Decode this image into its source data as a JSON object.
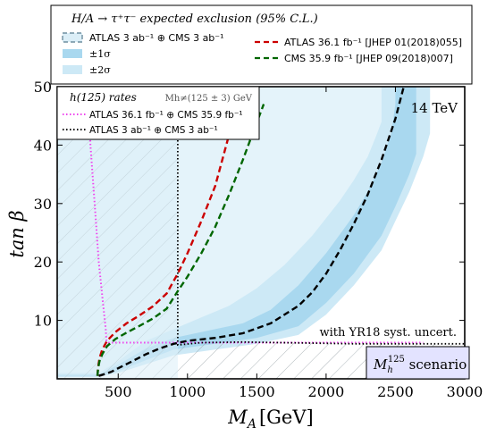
{
  "chart_data": {
    "type": "area",
    "xlabel": "M",
    "xlabel_sub": "A",
    "xlabel_unit": "[GeV]",
    "ylabel": "tan β",
    "xlim": [
      60,
      3000
    ],
    "ylim": [
      0,
      50
    ],
    "xticks": [
      500,
      1000,
      1500,
      2000,
      2500,
      3000
    ],
    "yticks": [
      10,
      20,
      30,
      40,
      50
    ],
    "energy_label": "14 TeV",
    "scenario_label": "M",
    "scenario_sub": "h",
    "scenario_sup": "125",
    "scenario_suffix": " scenario",
    "annotation": "with YR18 syst. uncert.",
    "legend_top": {
      "title": "H/A → τ⁺τ⁻ expected exclusion (95% C.L.)",
      "entries": [
        {
          "label": "ATLAS 3 ab⁻¹ ⊕ CMS 3 ab⁻¹",
          "kind": "dashed-box"
        },
        {
          "label": "±1σ",
          "kind": "band1"
        },
        {
          "label": "±2σ",
          "kind": "band2"
        },
        {
          "label": "ATLAS 36.1 fb⁻¹ [JHEP 01(2018)055]",
          "kind": "red-dash"
        },
        {
          "label": "CMS 35.9 fb⁻¹ [JHEP 09(2018)007]",
          "kind": "green-dash"
        }
      ]
    },
    "legend_h125": {
      "title": "h(125) rates",
      "note": "Mh≠(125 ± 3) GeV",
      "entries": [
        {
          "label": "ATLAS 36.1 fb⁻¹ ⊕ CMS 35.9 fb⁻¹",
          "kind": "magenta-dot"
        },
        {
          "label": "ATLAS 3 ab⁻¹ ⊕ CMS 3 ab⁻¹",
          "kind": "black-dot"
        }
      ]
    },
    "colors": {
      "band2": "#cde9f6",
      "band1": "#a9d8ef",
      "expected": "#000000",
      "atlas36": "#cc0000",
      "cms35": "#006600",
      "h125_current": "#ee44ee",
      "hatch_fill": "#dbeef7",
      "scenario_box": "#e3e3ff"
    },
    "series": [
      {
        "name": "ATLAS 3 ab⁻¹ ⊕ CMS 3 ab⁻¹",
        "style": "dashed-black",
        "x": [
          360,
          400,
          450,
          500,
          600,
          700,
          800,
          900,
          1000,
          1200,
          1400,
          1600,
          1800,
          1900,
          2000,
          2100,
          2200,
          2300,
          2400,
          2500,
          2560
        ],
        "y": [
          0.5,
          0.8,
          1.2,
          1.8,
          3.0,
          4.2,
          5.2,
          6.0,
          6.5,
          7.0,
          7.8,
          9.5,
          12.5,
          14.8,
          18,
          22,
          26.5,
          31.5,
          37.5,
          44.5,
          50
        ]
      },
      {
        "name": "ATLAS 36.1 fb⁻¹",
        "style": "dashed-red",
        "x": [
          350,
          355,
          365,
          385,
          420,
          480,
          560,
          650,
          750,
          850,
          930,
          1000,
          1100,
          1200,
          1280,
          1325
        ],
        "y": [
          0.5,
          2.0,
          3.5,
          5.0,
          6.5,
          8.0,
          9.5,
          10.8,
          12.4,
          14.6,
          18.0,
          21.5,
          27.0,
          33.0,
          40.0,
          44.0
        ]
      },
      {
        "name": "CMS 35.9 fb⁻¹",
        "style": "dashed-green",
        "x": [
          350,
          355,
          365,
          385,
          420,
          480,
          560,
          650,
          750,
          850,
          930,
          1000,
          1100,
          1200,
          1300,
          1400,
          1470,
          1550
        ],
        "y": [
          0.5,
          1.8,
          3.0,
          4.2,
          5.6,
          6.8,
          7.9,
          9.0,
          10.3,
          12.0,
          15.0,
          17.5,
          21.5,
          26.0,
          31.5,
          37.5,
          42.0,
          47.0
        ]
      }
    ],
    "band2_upper": {
      "x": [
        350,
        500,
        700,
        900,
        1200,
        1500,
        1800,
        2000,
        2200,
        2400,
        2500,
        2600,
        2700,
        2750
      ],
      "y": [
        0.3,
        1.0,
        2.5,
        4.0,
        5.0,
        6.0,
        7.5,
        11,
        16,
        22,
        27,
        32,
        38,
        42
      ]
    },
    "band1_upper": {
      "x": [
        360,
        500,
        700,
        900,
        1200,
        1500,
        1800,
        2000,
        2200,
        2400,
        2500,
        2600,
        2650
      ],
      "y": [
        0.4,
        1.3,
        3.2,
        5.0,
        6.0,
        7.0,
        9.0,
        13,
        18,
        24.5,
        29.5,
        35,
        38.5
      ]
    },
    "band1_lower": {
      "x": [
        360,
        500,
        700,
        900,
        1200,
        1400,
        1600,
        1800,
        2000,
        2200,
        2300,
        2400,
        2470,
        2500
      ],
      "y": [
        0.7,
        2.4,
        5.2,
        7.0,
        8.5,
        9.5,
        11.8,
        16,
        21.5,
        28,
        32,
        37,
        42,
        47
      ]
    },
    "band2_lower": {
      "x": [
        360,
        500,
        700,
        900,
        1100,
        1300,
        1500,
        1700,
        1900,
        2100,
        2200,
        2300,
        2360,
        2400
      ],
      "y": [
        1.0,
        3.0,
        6.5,
        8.5,
        10.5,
        12.5,
        15.5,
        19.5,
        24.5,
        30.5,
        34,
        38,
        41.5,
        44
      ]
    },
    "h125_current": {
      "x": [
        285,
        300,
        330,
        360,
        390,
        410,
        415,
        430,
        2700
      ],
      "y": [
        50,
        40,
        30,
        20,
        13,
        8.5,
        6.5,
        6.2,
        6.2
      ]
    },
    "h125_hl": {
      "x": [
        930,
        930,
        1100,
        1400,
        2200,
        2800,
        3000
      ],
      "y": [
        50,
        5.8,
        6.2,
        6.3,
        6.0,
        6.0,
        6.0
      ]
    }
  }
}
